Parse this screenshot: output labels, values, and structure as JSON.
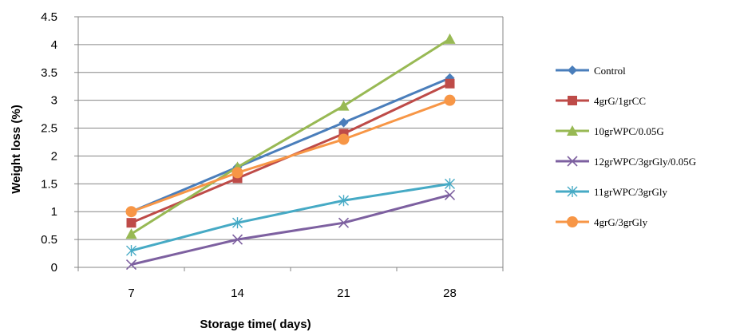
{
  "chart_data": {
    "type": "line",
    "title": "",
    "xlabel": "Storage time( days)",
    "ylabel": "Weight loss (%)",
    "categories": [
      "7",
      "14",
      "21",
      "28"
    ],
    "ylim": [
      0,
      4.5
    ],
    "yticks": [
      "0",
      "0.5",
      "1",
      "1.5",
      "2",
      "2.5",
      "3",
      "3.5",
      "4",
      "4.5"
    ],
    "grid": true,
    "legend_position": "right",
    "series": [
      {
        "name": "Control",
        "values": [
          1.0,
          1.8,
          2.6,
          3.4
        ],
        "color": "#4a7ebb",
        "marker": "diamond"
      },
      {
        "name": "4grG/1grCC",
        "values": [
          0.8,
          1.6,
          2.4,
          3.3
        ],
        "color": "#be4b48",
        "marker": "square"
      },
      {
        "name": "10grWPC/0.05G",
        "values": [
          0.6,
          1.8,
          2.9,
          4.1
        ],
        "color": "#98b954",
        "marker": "triangle"
      },
      {
        "name": "12grWPC/3grGly/0.05G",
        "values": [
          0.05,
          0.5,
          0.8,
          1.3
        ],
        "color": "#7d60a0",
        "marker": "x"
      },
      {
        "name": "11grWPC/3grGly",
        "values": [
          0.3,
          0.8,
          1.2,
          1.5
        ],
        "color": "#46aac5",
        "marker": "star"
      },
      {
        "name": "4grG/3grGly",
        "values": [
          1.0,
          1.7,
          2.3,
          3.0
        ],
        "color": "#f79646",
        "marker": "circle"
      }
    ]
  }
}
